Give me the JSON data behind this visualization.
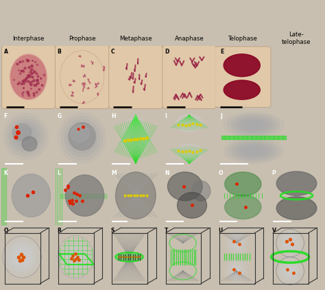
{
  "col_labels": [
    "Interphase",
    "Prophase",
    "Metaphase",
    "Anaphase",
    "Telophase",
    "Late-\ntelophase"
  ],
  "fig_bg": "#c8bfb0",
  "micro_bg": "#ddc8a8",
  "fluor_bg": "#080808",
  "diag_bg": "#f8f8f8",
  "green": "#22dd22",
  "red_dot": "#dd2200",
  "orange_dot": "#dd5500",
  "yellow_dot": "#ddcc00",
  "chr_color": "#aa2244",
  "cell_gray": "#888888",
  "sphere_gray": "#cccccc",
  "box_color": "#333333"
}
